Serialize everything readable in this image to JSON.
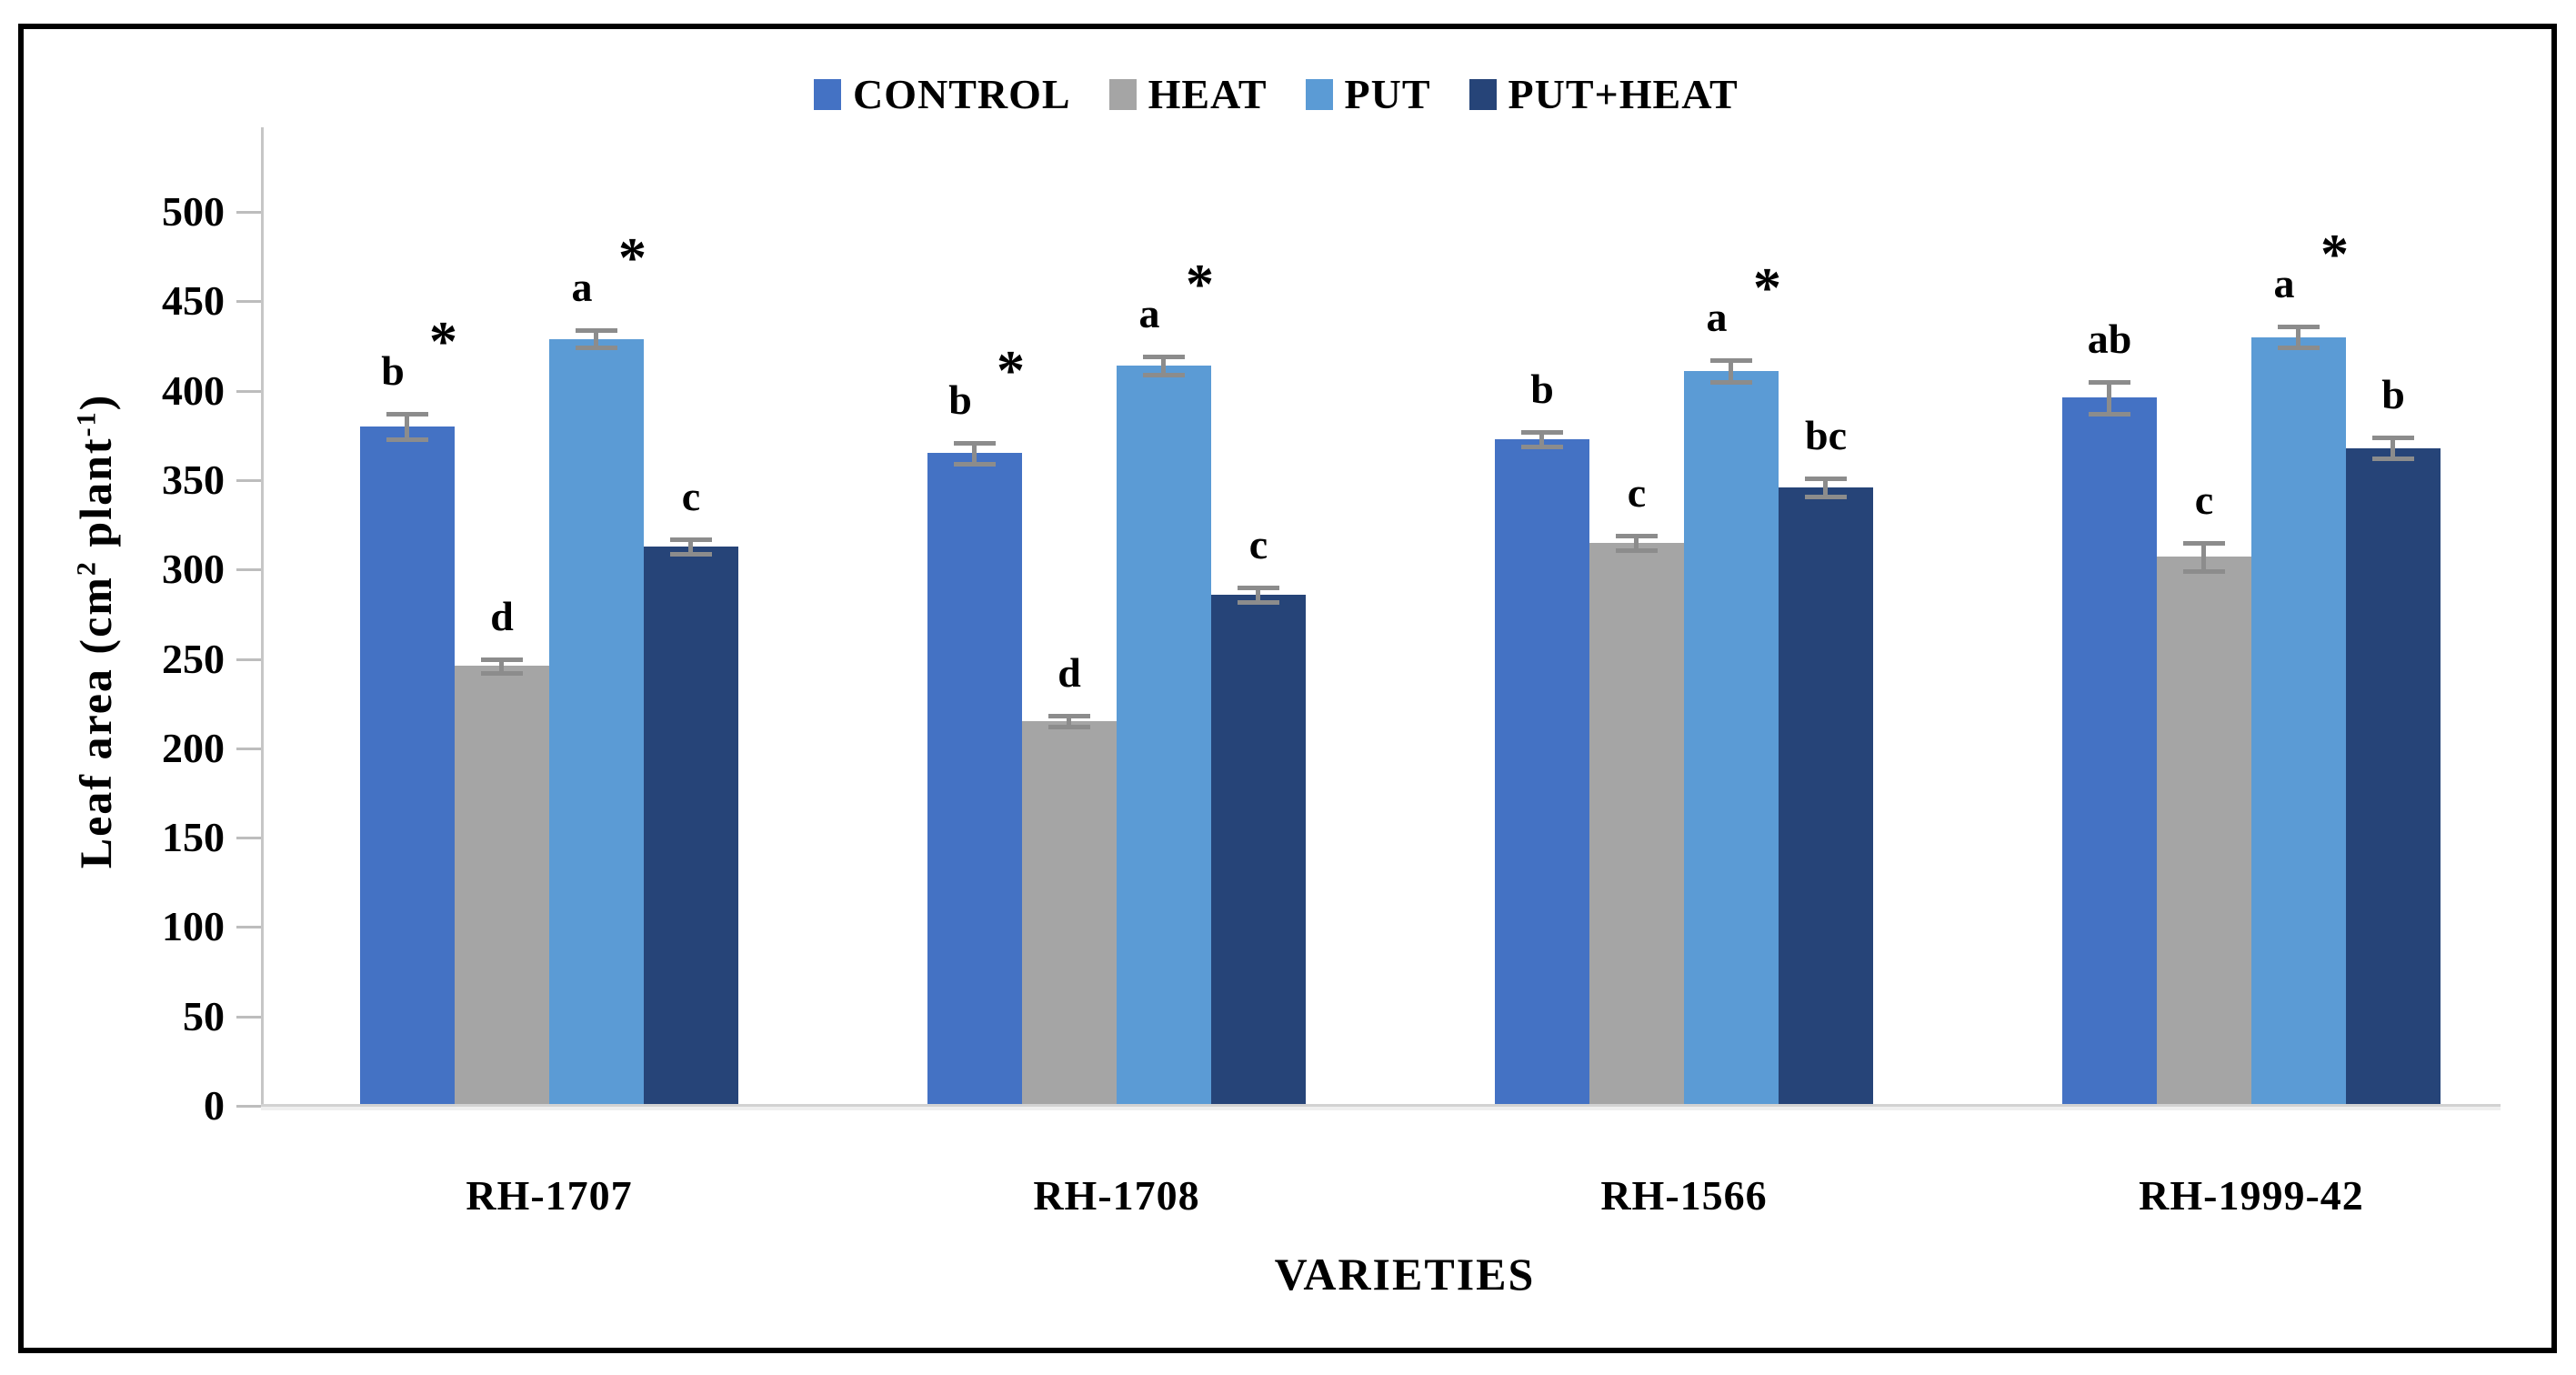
{
  "legend": {
    "items": [
      {
        "label": "CONTROL",
        "color": "#4472C4"
      },
      {
        "label": "HEAT",
        "color": "#A5A5A5"
      },
      {
        "label": "PUT",
        "color": "#5B9BD5"
      },
      {
        "label": "PUT+HEAT",
        "color": "#264478"
      }
    ]
  },
  "y_axis": {
    "title_parts": [
      {
        "t": "Leaf area (cm"
      },
      {
        "sup": "2"
      },
      {
        "t": " plant"
      },
      {
        "sup": "-1"
      },
      {
        "t": ")"
      }
    ],
    "ticks": [
      "0",
      "50",
      "100",
      "150",
      "200",
      "250",
      "300",
      "350",
      "400",
      "450",
      "500"
    ]
  },
  "x_axis": {
    "title": "VARIETIES"
  },
  "chart_data": {
    "type": "bar",
    "title": "",
    "xlabel": "VARIETIES",
    "ylabel": "Leaf area (cm2 plant-1)",
    "ylim": [
      0,
      500
    ],
    "grid": false,
    "legend_position": "top",
    "error_bar_color": "#8c8c8c",
    "categories": [
      "RH-1707",
      "RH-1708",
      "RH-1566",
      "RH-1999-42"
    ],
    "series": [
      {
        "name": "CONTROL",
        "color": "#4472C4",
        "values": [
          380,
          365,
          373,
          396
        ],
        "errors": [
          7,
          6,
          4,
          9
        ],
        "letters": [
          "b",
          "b",
          "b",
          "ab"
        ],
        "asterisks": [
          true,
          true,
          false,
          false
        ]
      },
      {
        "name": "HEAT",
        "color": "#A5A5A5",
        "values": [
          246,
          215,
          315,
          307
        ],
        "errors": [
          4,
          3,
          4,
          8
        ],
        "letters": [
          "d",
          "d",
          "c",
          "c"
        ],
        "asterisks": [
          false,
          false,
          false,
          false
        ]
      },
      {
        "name": "PUT",
        "color": "#5B9BD5",
        "values": [
          429,
          414,
          411,
          430
        ],
        "errors": [
          5,
          5,
          6,
          6
        ],
        "letters": [
          "a",
          "a",
          "a",
          "a"
        ],
        "asterisks": [
          true,
          true,
          true,
          true
        ]
      },
      {
        "name": "PUT+HEAT",
        "color": "#264478",
        "values": [
          313,
          286,
          346,
          368
        ],
        "errors": [
          4,
          4,
          5,
          6
        ],
        "letters": [
          "c",
          "c",
          "bc",
          "b"
        ],
        "asterisks": [
          false,
          false,
          false,
          false
        ]
      }
    ]
  }
}
